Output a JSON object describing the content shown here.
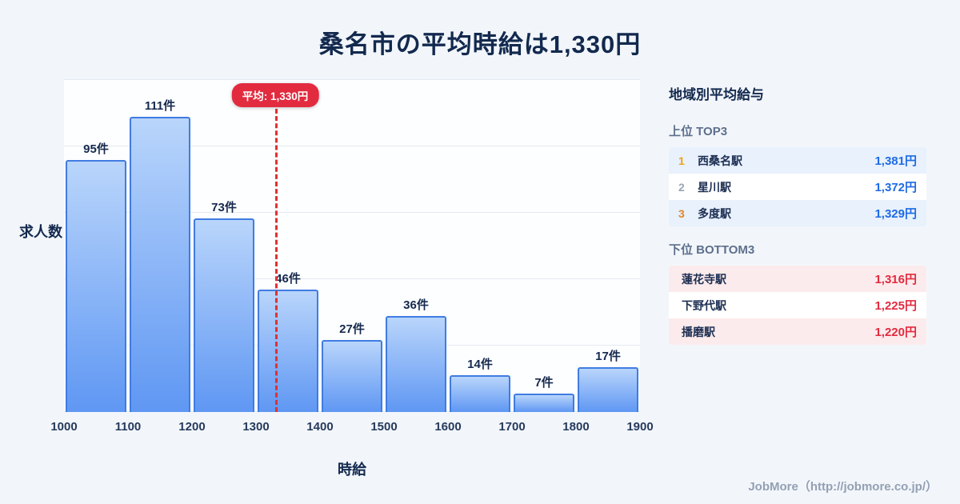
{
  "page": {
    "title": "桑名市の平均時給は1,330円",
    "footer": "JobMore（http://jobmore.co.jp/）"
  },
  "chart_data": {
    "type": "bar",
    "title": "桑名市の平均時給は1,330円",
    "xlabel": "時給",
    "ylabel": "求人数",
    "x_ticks": [
      1000,
      1100,
      1200,
      1300,
      1400,
      1500,
      1600,
      1700,
      1800,
      1900
    ],
    "categories": [
      "1000-1100",
      "1100-1200",
      "1200-1300",
      "1300-1400",
      "1400-1500",
      "1500-1600",
      "1600-1700",
      "1700-1800",
      "1800-1900"
    ],
    "values": [
      95,
      111,
      73,
      46,
      27,
      36,
      14,
      7,
      17
    ],
    "bar_labels": [
      "95件",
      "111件",
      "73件",
      "46件",
      "27件",
      "36件",
      "14件",
      "7件",
      "17件"
    ],
    "unit": "件",
    "ylim": [
      0,
      125
    ],
    "grid": true,
    "grid_step": 25,
    "legend": "none",
    "average": {
      "value": 1330,
      "label": "平均: 1,330円"
    },
    "colors": {
      "bar_top": "#b9d5fb",
      "bar_bottom": "#5f97f3",
      "bar_border": "#3f7ce2",
      "avg_line": "#e03131",
      "avg_badge_bg": "#e22b3f"
    }
  },
  "sidebar": {
    "title": "地域別平均給与",
    "top": {
      "heading": "上位 TOP3",
      "value_color": "#1e6be6",
      "rank_colors": [
        "#f0a30a",
        "#9aa5b4",
        "#e0862e"
      ],
      "rows": [
        {
          "rank": "1",
          "name": "西桑名駅",
          "value": "1,381円"
        },
        {
          "rank": "2",
          "name": "星川駅",
          "value": "1,372円"
        },
        {
          "rank": "3",
          "name": "多度駅",
          "value": "1,329円"
        }
      ]
    },
    "bottom": {
      "heading": "下位 BOTTOM3",
      "value_color": "#e22b3f",
      "rows": [
        {
          "name": "蓮花寺駅",
          "value": "1,316円"
        },
        {
          "name": "下野代駅",
          "value": "1,225円"
        },
        {
          "name": "播磨駅",
          "value": "1,220円"
        }
      ]
    }
  }
}
